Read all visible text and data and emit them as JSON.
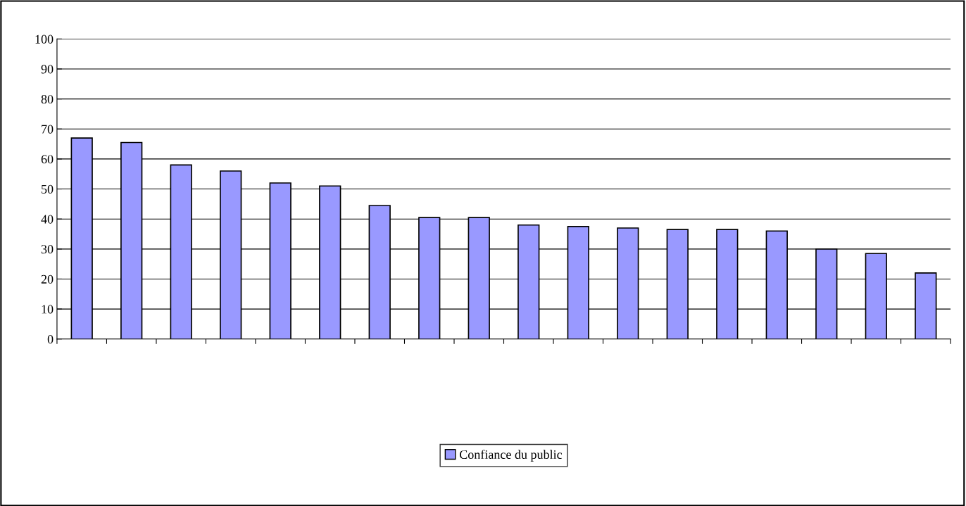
{
  "chart_data": {
    "type": "bar",
    "categories": [
      null,
      null,
      null,
      null,
      null,
      null,
      null,
      null,
      null,
      null,
      null,
      null,
      null,
      null,
      null,
      null,
      null,
      null
    ],
    "series": [
      {
        "name": "Confiance du public",
        "color": "#9999ff",
        "values": [
          67,
          65.5,
          58,
          56,
          52,
          51,
          44.5,
          40.5,
          40.5,
          38,
          37.5,
          37,
          36.5,
          36.5,
          36,
          30,
          28.5,
          22
        ]
      }
    ],
    "ylim": [
      0,
      100
    ],
    "yticks": [
      0,
      10,
      20,
      30,
      40,
      50,
      60,
      70,
      80,
      90,
      100
    ],
    "grid": "y",
    "legend": "bottom"
  }
}
